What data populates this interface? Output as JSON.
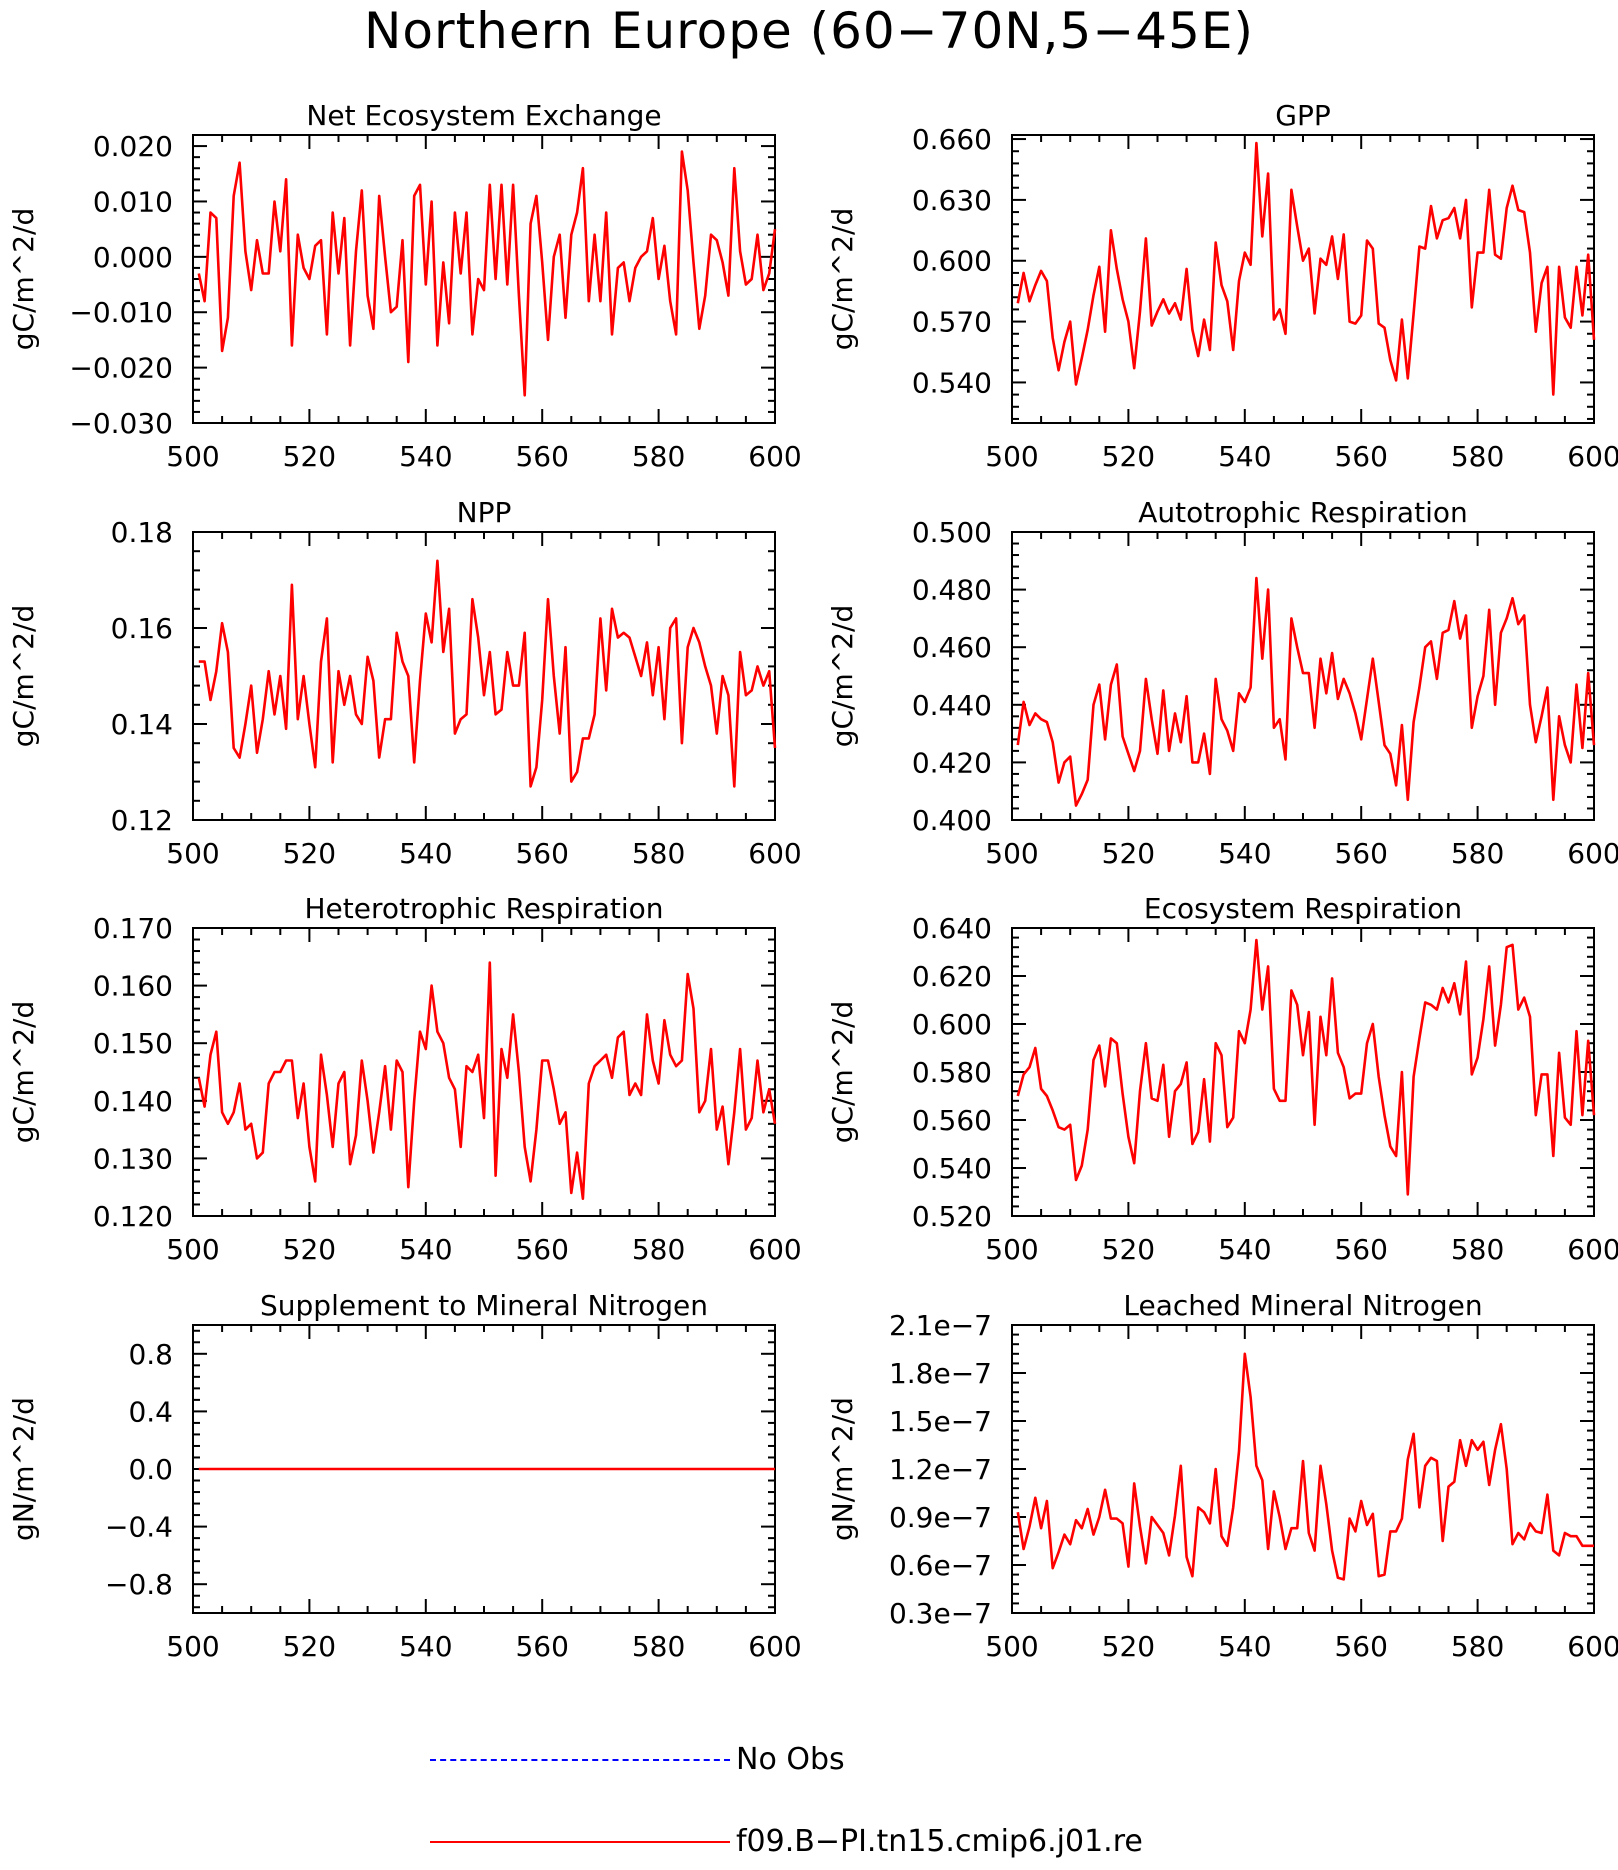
{
  "title": "Northern Europe (60−70N,5−45E)",
  "legend": [
    {
      "label": "No Obs",
      "color": "#0000ff",
      "style": "dashed"
    },
    {
      "label": "f09.B−PI.tn15.cmip6.j01.re",
      "color": "#ff0000",
      "style": "solid"
    }
  ],
  "chart_data": [
    {
      "type": "line",
      "title": "Net Ecosystem Exchange",
      "ylabel": "gC/m^2/d",
      "xlim": [
        500,
        600
      ],
      "ylim": [
        -0.03,
        0.022
      ],
      "xticks": [
        "500",
        "520",
        "540",
        "560",
        "580",
        "600"
      ],
      "yticks": [
        "0.020",
        "0.010",
        "0.000",
        "−0.010",
        "−0.020",
        "−0.030"
      ],
      "ytick_values": [
        0.02,
        0.01,
        0.0,
        -0.01,
        -0.02,
        -0.03
      ],
      "series": [
        {
          "color": "#ff0000",
          "x_start": 501,
          "values": [
            -0.003,
            -0.008,
            0.008,
            0.007,
            -0.017,
            -0.011,
            0.011,
            0.017,
            0.001,
            -0.006,
            0.003,
            -0.003,
            -0.003,
            0.01,
            0.001,
            0.014,
            -0.016,
            0.004,
            -0.002,
            -0.004,
            0.002,
            0.003,
            -0.014,
            0.008,
            -0.003,
            0.007,
            -0.016,
            0.001,
            0.012,
            -0.007,
            -0.013,
            0.011,
            0.0,
            -0.01,
            -0.009,
            0.003,
            -0.019,
            0.011,
            0.013,
            -0.005,
            0.01,
            -0.016,
            -0.001,
            -0.012,
            0.008,
            -0.003,
            0.008,
            -0.014,
            -0.004,
            -0.006,
            0.013,
            -0.004,
            0.013,
            -0.005,
            0.013,
            -0.007,
            -0.025,
            0.006,
            0.011,
            -0.001,
            -0.015,
            0.0,
            0.004,
            -0.011,
            0.004,
            0.008,
            0.016,
            -0.008,
            0.004,
            -0.008,
            0.008,
            -0.014,
            -0.002,
            -0.001,
            -0.008,
            -0.002,
            0.0,
            0.001,
            0.007,
            -0.004,
            0.002,
            -0.008,
            -0.014,
            0.019,
            0.012,
            -0.001,
            -0.013,
            -0.007,
            0.004,
            0.003,
            -0.001,
            -0.007,
            0.016,
            0.001,
            -0.005,
            -0.004,
            0.004,
            -0.006,
            -0.003,
            0.005
          ]
        }
      ]
    },
    {
      "type": "line",
      "title": "GPP",
      "ylabel": "gC/m^2/d",
      "xlim": [
        500,
        600
      ],
      "ylim": [
        0.52,
        0.662
      ],
      "xticks": [
        "500",
        "520",
        "540",
        "560",
        "580",
        "600"
      ],
      "yticks": [
        "0.660",
        "0.630",
        "0.600",
        "0.570",
        "0.540"
      ],
      "ytick_values": [
        0.66,
        0.63,
        0.6,
        0.57,
        0.54
      ],
      "series": [
        {
          "color": "#ff0000",
          "x_start": 501,
          "values": [
            0.579,
            0.594,
            0.58,
            0.588,
            0.595,
            0.59,
            0.562,
            0.546,
            0.56,
            0.57,
            0.539,
            0.552,
            0.566,
            0.583,
            0.597,
            0.565,
            0.615,
            0.596,
            0.581,
            0.57,
            0.547,
            0.575,
            0.611,
            0.568,
            0.575,
            0.581,
            0.574,
            0.579,
            0.571,
            0.596,
            0.566,
            0.553,
            0.571,
            0.556,
            0.609,
            0.588,
            0.58,
            0.556,
            0.59,
            0.604,
            0.598,
            0.658,
            0.612,
            0.643,
            0.571,
            0.576,
            0.564,
            0.635,
            0.617,
            0.6,
            0.606,
            0.574,
            0.601,
            0.598,
            0.612,
            0.591,
            0.613,
            0.57,
            0.569,
            0.573,
            0.61,
            0.606,
            0.569,
            0.567,
            0.551,
            0.541,
            0.571,
            0.542,
            0.574,
            0.607,
            0.606,
            0.627,
            0.611,
            0.62,
            0.621,
            0.626,
            0.611,
            0.63,
            0.577,
            0.604,
            0.604,
            0.635,
            0.603,
            0.601,
            0.626,
            0.637,
            0.625,
            0.624,
            0.604,
            0.565,
            0.589,
            0.597,
            0.534,
            0.597,
            0.572,
            0.567,
            0.597,
            0.573,
            0.603,
            0.561
          ]
        }
      ]
    },
    {
      "type": "line",
      "title": "NPP",
      "ylabel": "gC/m^2/d",
      "xlim": [
        500,
        600
      ],
      "ylim": [
        0.12,
        0.18
      ],
      "xticks": [
        "500",
        "520",
        "540",
        "560",
        "580",
        "600"
      ],
      "yticks": [
        "0.18",
        "0.16",
        "0.14",
        "0.12"
      ],
      "ytick_values": [
        0.18,
        0.16,
        0.14,
        0.12
      ],
      "series": [
        {
          "color": "#ff0000",
          "x_start": 501,
          "values": [
            0.153,
            0.153,
            0.145,
            0.151,
            0.161,
            0.155,
            0.135,
            0.133,
            0.14,
            0.148,
            0.134,
            0.141,
            0.151,
            0.142,
            0.15,
            0.139,
            0.169,
            0.141,
            0.15,
            0.14,
            0.131,
            0.153,
            0.162,
            0.132,
            0.151,
            0.144,
            0.15,
            0.142,
            0.14,
            0.154,
            0.149,
            0.133,
            0.141,
            0.141,
            0.159,
            0.153,
            0.15,
            0.132,
            0.149,
            0.163,
            0.157,
            0.174,
            0.155,
            0.164,
            0.138,
            0.141,
            0.142,
            0.166,
            0.158,
            0.146,
            0.155,
            0.142,
            0.143,
            0.155,
            0.148,
            0.148,
            0.159,
            0.127,
            0.131,
            0.145,
            0.166,
            0.15,
            0.138,
            0.156,
            0.128,
            0.13,
            0.137,
            0.137,
            0.142,
            0.162,
            0.147,
            0.164,
            0.158,
            0.159,
            0.158,
            0.154,
            0.15,
            0.157,
            0.146,
            0.156,
            0.141,
            0.16,
            0.162,
            0.136,
            0.156,
            0.16,
            0.157,
            0.152,
            0.148,
            0.138,
            0.15,
            0.146,
            0.127,
            0.155,
            0.146,
            0.147,
            0.152,
            0.148,
            0.151,
            0.135
          ]
        }
      ]
    },
    {
      "type": "line",
      "title": "Autotrophic Respiration",
      "ylabel": "gC/m^2/d",
      "xlim": [
        500,
        600
      ],
      "ylim": [
        0.4,
        0.5
      ],
      "xticks": [
        "500",
        "520",
        "540",
        "560",
        "580",
        "600"
      ],
      "yticks": [
        "0.500",
        "0.480",
        "0.460",
        "0.440",
        "0.420",
        "0.400"
      ],
      "ytick_values": [
        0.5,
        0.48,
        0.46,
        0.44,
        0.42,
        0.4
      ],
      "series": [
        {
          "color": "#ff0000",
          "x_start": 501,
          "values": [
            0.426,
            0.441,
            0.433,
            0.437,
            0.435,
            0.434,
            0.427,
            0.413,
            0.42,
            0.422,
            0.405,
            0.409,
            0.414,
            0.44,
            0.447,
            0.428,
            0.447,
            0.454,
            0.429,
            0.423,
            0.417,
            0.424,
            0.449,
            0.435,
            0.423,
            0.445,
            0.424,
            0.437,
            0.427,
            0.443,
            0.42,
            0.42,
            0.43,
            0.416,
            0.449,
            0.435,
            0.431,
            0.424,
            0.444,
            0.441,
            0.446,
            0.484,
            0.456,
            0.48,
            0.432,
            0.435,
            0.421,
            0.47,
            0.46,
            0.451,
            0.451,
            0.432,
            0.456,
            0.444,
            0.458,
            0.442,
            0.449,
            0.444,
            0.437,
            0.428,
            0.442,
            0.456,
            0.441,
            0.426,
            0.423,
            0.412,
            0.433,
            0.407,
            0.434,
            0.446,
            0.46,
            0.462,
            0.449,
            0.465,
            0.466,
            0.476,
            0.463,
            0.471,
            0.432,
            0.443,
            0.45,
            0.473,
            0.44,
            0.465,
            0.47,
            0.477,
            0.468,
            0.471,
            0.44,
            0.427,
            0.436,
            0.446,
            0.407,
            0.436,
            0.426,
            0.42,
            0.447,
            0.425,
            0.451,
            0.426
          ]
        }
      ]
    },
    {
      "type": "line",
      "title": "Heterotrophic Respiration",
      "ylabel": "gC/m^2/d",
      "xlim": [
        500,
        600
      ],
      "ylim": [
        0.12,
        0.17
      ],
      "xticks": [
        "500",
        "520",
        "540",
        "560",
        "580",
        "600"
      ],
      "yticks": [
        "0.170",
        "0.160",
        "0.150",
        "0.140",
        "0.130",
        "0.120"
      ],
      "ytick_values": [
        0.17,
        0.16,
        0.15,
        0.14,
        0.13,
        0.12
      ],
      "series": [
        {
          "color": "#ff0000",
          "x_start": 501,
          "values": [
            0.144,
            0.139,
            0.148,
            0.152,
            0.138,
            0.136,
            0.138,
            0.143,
            0.135,
            0.136,
            0.13,
            0.131,
            0.143,
            0.145,
            0.145,
            0.147,
            0.147,
            0.137,
            0.143,
            0.132,
            0.126,
            0.148,
            0.141,
            0.132,
            0.143,
            0.145,
            0.129,
            0.134,
            0.147,
            0.14,
            0.131,
            0.138,
            0.146,
            0.135,
            0.147,
            0.145,
            0.125,
            0.14,
            0.152,
            0.149,
            0.16,
            0.152,
            0.15,
            0.144,
            0.142,
            0.132,
            0.146,
            0.145,
            0.148,
            0.137,
            0.164,
            0.127,
            0.149,
            0.144,
            0.155,
            0.145,
            0.132,
            0.126,
            0.135,
            0.147,
            0.147,
            0.142,
            0.136,
            0.138,
            0.124,
            0.131,
            0.123,
            0.143,
            0.146,
            0.147,
            0.148,
            0.144,
            0.151,
            0.152,
            0.141,
            0.143,
            0.141,
            0.155,
            0.147,
            0.143,
            0.154,
            0.148,
            0.146,
            0.147,
            0.162,
            0.156,
            0.138,
            0.14,
            0.149,
            0.135,
            0.139,
            0.129,
            0.138,
            0.149,
            0.135,
            0.137,
            0.147,
            0.138,
            0.142,
            0.136
          ]
        }
      ]
    },
    {
      "type": "line",
      "title": "Ecosystem Respiration",
      "ylabel": "gC/m^2/d",
      "xlim": [
        500,
        600
      ],
      "ylim": [
        0.52,
        0.64
      ],
      "xticks": [
        "500",
        "520",
        "540",
        "560",
        "580",
        "600"
      ],
      "yticks": [
        "0.640",
        "0.620",
        "0.600",
        "0.580",
        "0.560",
        "0.540",
        "0.520"
      ],
      "ytick_values": [
        0.64,
        0.62,
        0.6,
        0.58,
        0.56,
        0.54,
        0.52
      ],
      "series": [
        {
          "color": "#ff0000",
          "x_start": 501,
          "values": [
            0.57,
            0.579,
            0.582,
            0.59,
            0.573,
            0.57,
            0.564,
            0.557,
            0.556,
            0.558,
            0.535,
            0.541,
            0.556,
            0.585,
            0.591,
            0.574,
            0.594,
            0.592,
            0.571,
            0.553,
            0.542,
            0.572,
            0.592,
            0.569,
            0.568,
            0.583,
            0.553,
            0.572,
            0.575,
            0.584,
            0.55,
            0.555,
            0.577,
            0.551,
            0.592,
            0.587,
            0.557,
            0.561,
            0.597,
            0.592,
            0.606,
            0.635,
            0.606,
            0.624,
            0.573,
            0.568,
            0.568,
            0.614,
            0.608,
            0.587,
            0.605,
            0.558,
            0.603,
            0.587,
            0.619,
            0.588,
            0.582,
            0.569,
            0.571,
            0.571,
            0.592,
            0.6,
            0.578,
            0.562,
            0.549,
            0.545,
            0.58,
            0.529,
            0.578,
            0.594,
            0.609,
            0.608,
            0.606,
            0.615,
            0.609,
            0.617,
            0.604,
            0.626,
            0.579,
            0.586,
            0.602,
            0.624,
            0.591,
            0.608,
            0.632,
            0.633,
            0.606,
            0.611,
            0.603,
            0.562,
            0.579,
            0.579,
            0.545,
            0.588,
            0.561,
            0.558,
            0.597,
            0.562,
            0.593,
            0.562
          ]
        }
      ]
    },
    {
      "type": "line",
      "title": "Supplement to Mineral Nitrogen",
      "ylabel": "gN/m^2/d",
      "xlim": [
        500,
        600
      ],
      "ylim": [
        -1.0,
        1.0
      ],
      "xticks": [
        "500",
        "520",
        "540",
        "560",
        "580",
        "600"
      ],
      "yticks": [
        "0.8",
        "0.4",
        "0.0",
        "−0.4",
        "−0.8"
      ],
      "ytick_values": [
        0.8,
        0.4,
        0.0,
        -0.4,
        -0.8
      ],
      "series": [
        {
          "color": "#ff0000",
          "x": [
            501,
            600
          ],
          "values": [
            0.0,
            0.0
          ]
        }
      ]
    },
    {
      "type": "line",
      "title": "Leached Mineral Nitrogen",
      "ylabel": "gN/m^2/d",
      "xlim": [
        500,
        600
      ],
      "ylim": [
        3e-08,
        2.1e-07
      ],
      "xticks": [
        "500",
        "520",
        "540",
        "560",
        "580",
        "600"
      ],
      "yticks": [
        "2.1e−7",
        "1.8e−7",
        "1.5e−7",
        "1.2e−7",
        "0.9e−7",
        "0.6e−7",
        "0.3e−7"
      ],
      "ytick_values": [
        2.1e-07,
        1.8e-07,
        1.5e-07,
        1.2e-07,
        9e-08,
        6e-08,
        3e-08
      ],
      "series": [
        {
          "color": "#ff0000",
          "x_start": 501,
          "values": [
            9.3e-08,
            7e-08,
            8.4e-08,
            1.02e-07,
            8.3e-08,
            1e-07,
            5.8e-08,
            6.8e-08,
            7.9e-08,
            7.3e-08,
            8.8e-08,
            8.3e-08,
            9.5e-08,
            7.9e-08,
            9e-08,
            1.07e-07,
            8.9e-08,
            8.9e-08,
            8.6e-08,
            5.9e-08,
            1.11e-07,
            8.4e-08,
            6.1e-08,
            9e-08,
            8.5e-08,
            8e-08,
            6.6e-08,
            9.1e-08,
            1.22e-07,
            6.5e-08,
            5.3e-08,
            9.6e-08,
            9.3e-08,
            8.6e-08,
            1.2e-07,
            7.8e-08,
            7.2e-08,
            9.6e-08,
            1.31e-07,
            1.92e-07,
            1.65e-07,
            1.22e-07,
            1.13e-07,
            7e-08,
            1.06e-07,
            9e-08,
            7e-08,
            8.3e-08,
            8.3e-08,
            1.25e-07,
            8e-08,
            6.9e-08,
            1.22e-07,
            9.8e-08,
            6.9e-08,
            5.2e-08,
            5.1e-08,
            8.9e-08,
            8.1e-08,
            1e-07,
            8.5e-08,
            9.2e-08,
            5.3e-08,
            5.4e-08,
            8.1e-08,
            8.1e-08,
            8.9e-08,
            1.26e-07,
            1.42e-07,
            9.6e-08,
            1.22e-07,
            1.27e-07,
            1.25e-07,
            7.5e-08,
            1.09e-07,
            1.12e-07,
            1.38e-07,
            1.22e-07,
            1.38e-07,
            1.32e-07,
            1.37e-07,
            1.1e-07,
            1.32e-07,
            1.48e-07,
            1.2e-07,
            7.3e-08,
            8e-08,
            7.6e-08,
            8.6e-08,
            8.1e-08,
            8e-08,
            1.04e-07,
            6.9e-08,
            6.6e-08,
            8e-08,
            7.8e-08,
            7.8e-08,
            7.2e-08,
            7.2e-08,
            7.2e-08
          ]
        }
      ]
    }
  ]
}
